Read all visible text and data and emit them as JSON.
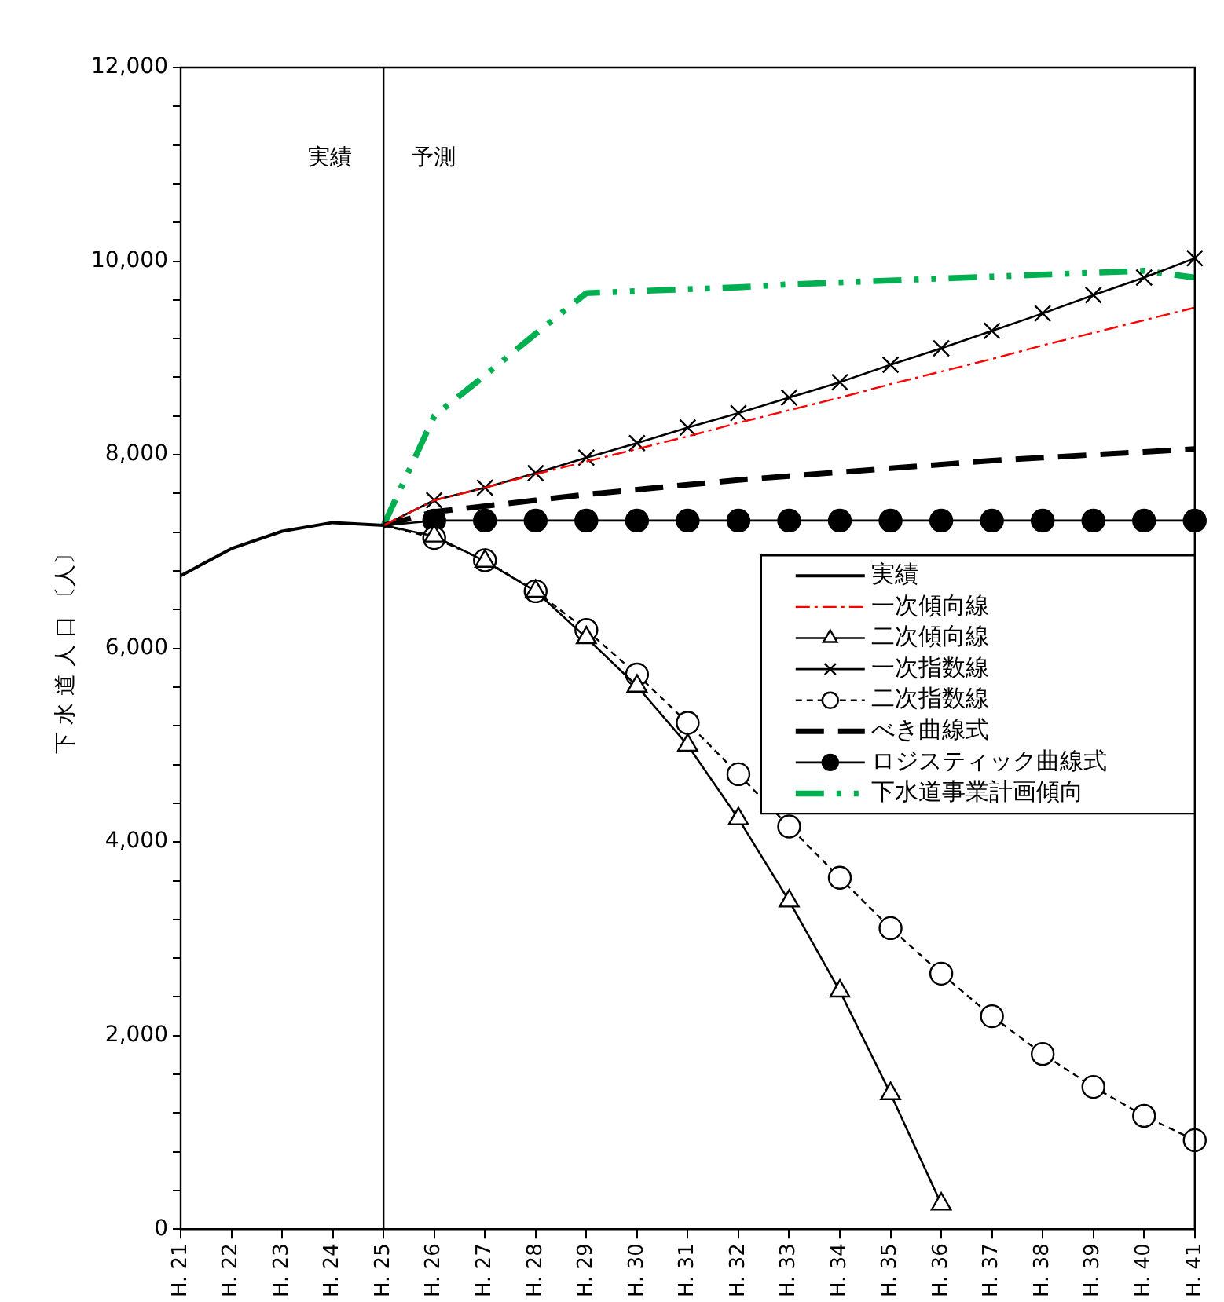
{
  "chart_data": {
    "type": "line",
    "ylabel": "下 水 道 人 口 〔人〕",
    "categories": [
      "H. 21",
      "H. 22",
      "H. 23",
      "H. 24",
      "H. 25",
      "H. 26",
      "H. 27",
      "H. 28",
      "H. 29",
      "H. 30",
      "H. 31",
      "H. 32",
      "H. 33",
      "H. 34",
      "H. 35",
      "H. 36",
      "H. 37",
      "H. 38",
      "H. 39",
      "H. 40",
      "H. 41"
    ],
    "ylim": [
      0,
      12000
    ],
    "yticks": [
      0,
      {
        "value": 400,
        "label": null
      },
      {
        "value": 800,
        "label": null
      },
      {
        "value": 1200,
        "label": null
      },
      {
        "value": 1600,
        "label": null
      },
      {
        "value": 2000,
        "label": "2,000"
      },
      {
        "value": 2400,
        "label": null
      },
      {
        "value": 2800,
        "label": null
      },
      {
        "value": 3200,
        "label": null
      },
      {
        "value": 3600,
        "label": null
      },
      {
        "value": 4000,
        "label": "4,000"
      },
      {
        "value": 4400,
        "label": null
      },
      {
        "value": 4800,
        "label": null
      },
      {
        "value": 5200,
        "label": null
      },
      {
        "value": 5600,
        "label": null
      },
      {
        "value": 6000,
        "label": "6,000"
      },
      {
        "value": 6400,
        "label": null
      },
      {
        "value": 6800,
        "label": null
      },
      {
        "value": 7200,
        "label": null
      },
      {
        "value": 7600,
        "label": null
      },
      {
        "value": 8000,
        "label": "8,000"
      },
      {
        "value": 8400,
        "label": null
      },
      {
        "value": 8800,
        "label": null
      },
      {
        "value": 9200,
        "label": null
      },
      {
        "value": 9600,
        "label": null
      },
      {
        "value": 10000,
        "label": "10,000"
      },
      {
        "value": 10400,
        "label": null
      },
      {
        "value": 10800,
        "label": null
      },
      {
        "value": 11200,
        "label": null
      },
      {
        "value": 11600,
        "label": null
      },
      {
        "value": 12000,
        "label": "12,000"
      }
    ],
    "grid": false,
    "legend": "right",
    "series": [
      {
        "name": "実績",
        "color": "#000000",
        "line_style": "solid",
        "marker": "none",
        "values": [
          6750,
          7030,
          7210,
          7300,
          7270,
          null,
          null,
          null,
          null,
          null,
          null,
          null,
          null,
          null,
          null,
          null,
          null,
          null,
          null,
          null,
          null
        ]
      },
      {
        "name": "一次傾向線",
        "color": "#ff0000",
        "line_style": "dashdot",
        "marker": "none",
        "values": [
          null,
          null,
          null,
          null,
          7270,
          7530,
          7660,
          7800,
          7930,
          8060,
          8190,
          8330,
          8460,
          8590,
          8730,
          8860,
          8990,
          9130,
          9260,
          9390,
          9520
        ]
      },
      {
        "name": "二次傾向線",
        "color": "#000000",
        "line_style": "solid",
        "marker": "triangle",
        "values": [
          null,
          null,
          null,
          null,
          7270,
          7160,
          6900,
          6590,
          6110,
          5610,
          5000,
          4240,
          3390,
          2460,
          1400,
          260,
          null,
          null,
          null,
          null,
          null
        ]
      },
      {
        "name": "一次指数線",
        "color": "#000000",
        "line_style": "solid",
        "marker": "cross",
        "values": [
          null,
          null,
          null,
          null,
          7270,
          7530,
          7660,
          7810,
          7970,
          8120,
          8280,
          8430,
          8590,
          8750,
          8930,
          9100,
          9280,
          9460,
          9650,
          9830,
          10030
        ]
      },
      {
        "name": "二次指数線",
        "color": "#000000",
        "line_style": "dotted",
        "marker": "circle",
        "values": [
          null,
          null,
          null,
          null,
          7270,
          7140,
          6910,
          6590,
          6190,
          5730,
          5230,
          4700,
          4160,
          3630,
          3110,
          2640,
          2200,
          1810,
          1470,
          1170,
          920
        ]
      },
      {
        "name": "べき曲線式",
        "color": "#000000",
        "line_style": "dashed",
        "marker": "none",
        "values": [
          null,
          null,
          null,
          null,
          7270,
          7410,
          7470,
          7530,
          7590,
          7640,
          7690,
          7740,
          7780,
          7820,
          7860,
          7900,
          7940,
          7970,
          8000,
          8030,
          8060
        ]
      },
      {
        "name": "ロジスティック曲線式",
        "color": "#000000",
        "line_style": "solid",
        "marker": "circle",
        "values": [
          null,
          null,
          null,
          null,
          7270,
          7320,
          7320,
          7320,
          7320,
          7320,
          7320,
          7320,
          7320,
          7320,
          7320,
          7320,
          7320,
          7320,
          7320,
          7320,
          7320
        ]
      },
      {
        "name": "下水道事業計画傾向",
        "color": "#00b050",
        "line_style": "dashdotdot",
        "marker": "none",
        "values": [
          null,
          null,
          null,
          null,
          7270,
          8400,
          8820,
          9250,
          9670,
          9690,
          9710,
          9730,
          9760,
          9780,
          9800,
          9820,
          9840,
          9860,
          9880,
          9900,
          9830
        ]
      }
    ],
    "ref_lines": [
      {
        "axis": "x",
        "value": "H. 25",
        "color": "#000000",
        "line_style": "solid"
      }
    ],
    "annotations": [
      "実績",
      "予測"
    ]
  }
}
